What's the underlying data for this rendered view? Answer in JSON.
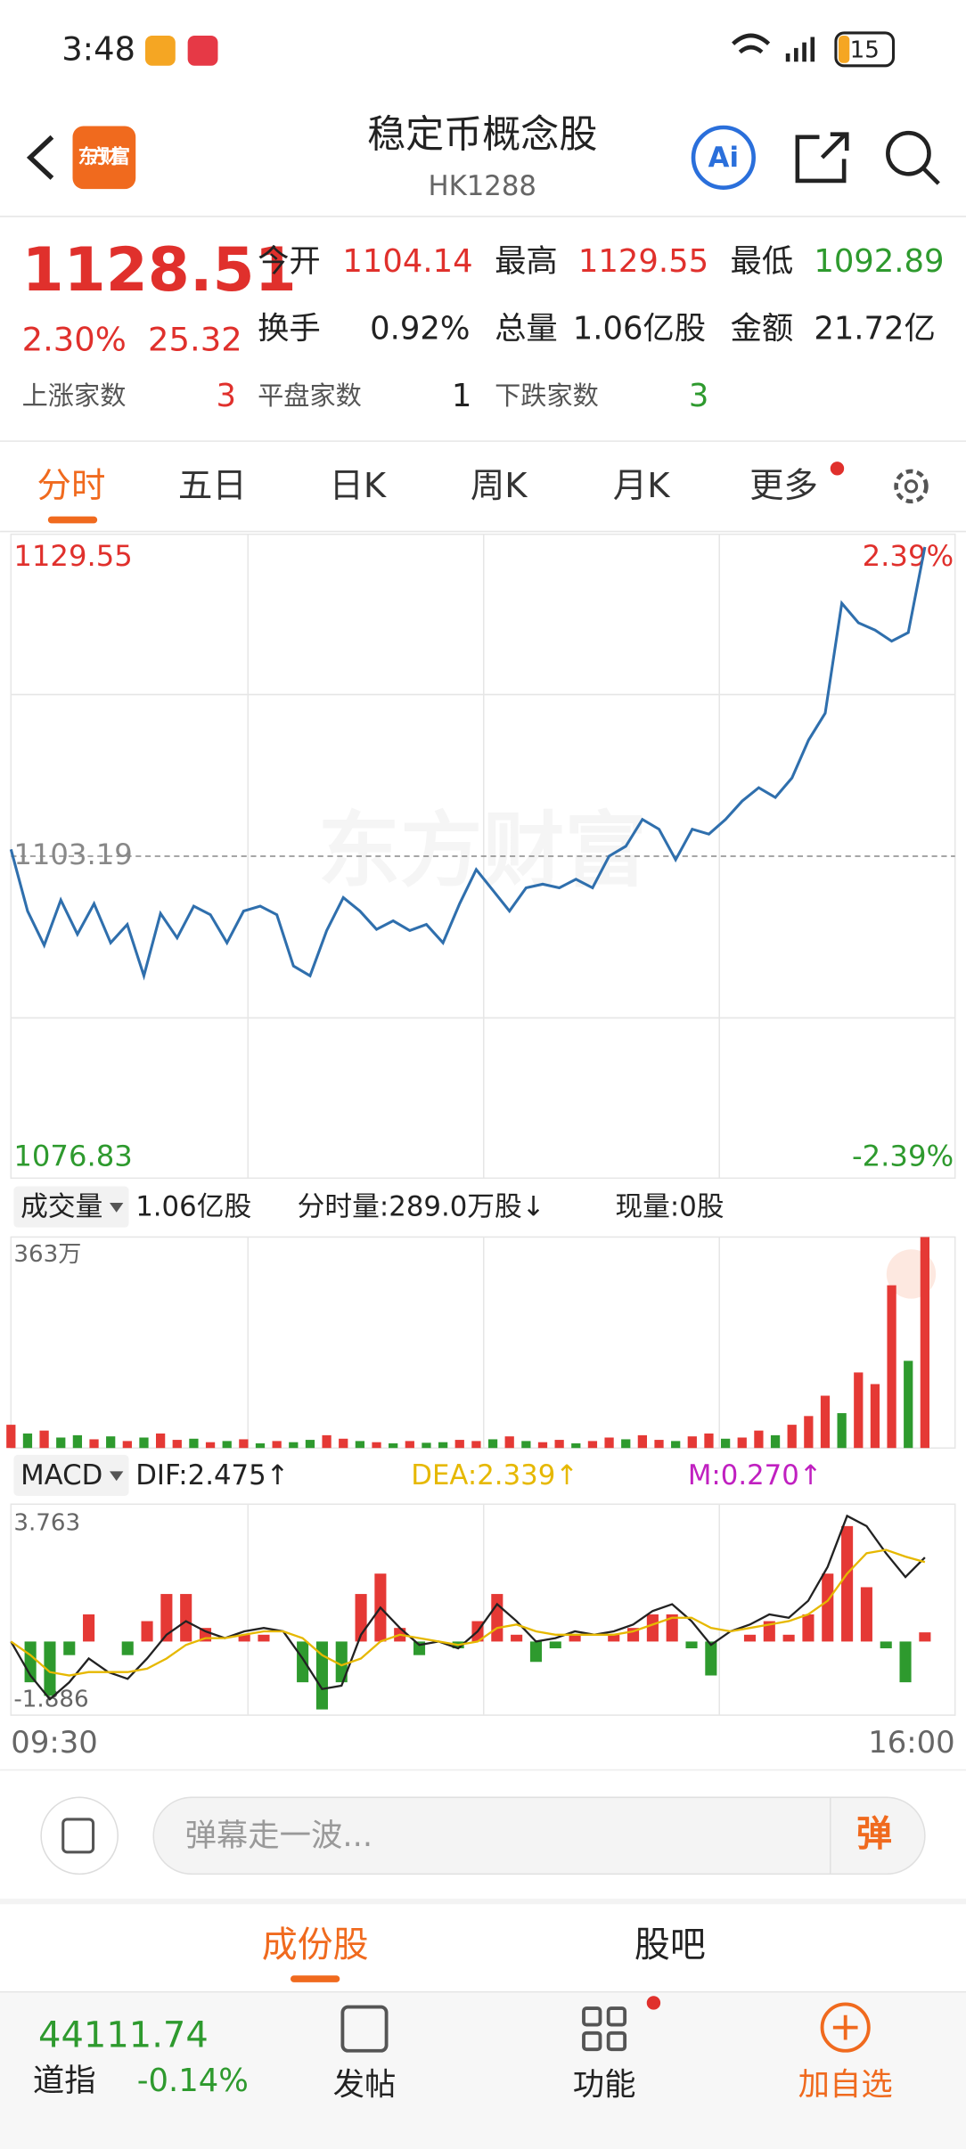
{
  "status_bar": {
    "time": "3:48",
    "battery": "15"
  },
  "header": {
    "logo": "东方财富",
    "title": "稳定币概念股",
    "code": "HK1288",
    "ai": "Ai"
  },
  "quote": {
    "price": "1128.51",
    "change_pct": "2.30%",
    "change": "25.32",
    "stats": [
      {
        "label": "今开",
        "value": "1104.14"
      },
      {
        "label": "最高",
        "value": "1129.55"
      },
      {
        "label": "最低",
        "value": "1092.89"
      },
      {
        "label": "换手",
        "value": "0.92%"
      },
      {
        "label": "总量",
        "value": "1.06亿股"
      },
      {
        "label": "金额",
        "value": "21.72亿"
      }
    ],
    "breadth": [
      {
        "label": "上涨家数",
        "value": "3"
      },
      {
        "label": "平盘家数",
        "value": "1"
      },
      {
        "label": "下跌家数",
        "value": "3"
      }
    ]
  },
  "tabs": [
    "分时",
    "五日",
    "日K",
    "周K",
    "月K",
    "更多"
  ],
  "watermark": "东方财富",
  "volume_header": {
    "selector": "成交量",
    "total": "1.06亿股",
    "minute": "分时量:289.0万股↓",
    "current": "现量:0股"
  },
  "macd_header": "MACD",
  "time_axis": [
    "09:30",
    "16:00"
  ],
  "chart_data": [
    {
      "type": "line",
      "color": "#2f6fad",
      "values": [
        1103.75,
        1098.7,
        1095.9,
        1099.6,
        1096.8,
        1099.3,
        1096.1,
        1097.6,
        1093.4,
        1098.5,
        1096.5,
        1099.1,
        1098.4,
        1096.1,
        1098.7,
        1099.1,
        1098.4,
        1094.2,
        1093.4,
        1097.1,
        1099.8,
        1098.7,
        1097.2,
        1097.9,
        1097.1,
        1097.6,
        1096.1,
        1099.3,
        1102.1,
        1100.4,
        1098.7,
        1100.6,
        1100.9,
        1100.6,
        1101.3,
        1100.6,
        1103.2,
        1104.0,
        1106.2,
        1105.4,
        1102.9,
        1105.4,
        1105.0,
        1106.2,
        1107.7,
        1108.8,
        1108.0,
        1109.6,
        1112.7,
        1114.9,
        1123.9,
        1122.3,
        1121.7,
        1120.8,
        1121.5,
        1128.51
      ],
      "ylim": [
        1076.83,
        1129.55
      ],
      "yticks": [
        1129.55,
        1103.19,
        1076.83
      ],
      "y2lim": [
        -2.39,
        2.39
      ],
      "y2ticks": [
        {
          "value": 2.39,
          "label": "2.39%"
        },
        {
          "value": -2.39,
          "label": "-2.39%"
        }
      ]
    },
    {
      "type": "bar",
      "values": [
        40,
        25,
        30,
        18,
        22,
        15,
        20,
        12,
        18,
        25,
        14,
        16,
        10,
        12,
        15,
        8,
        12,
        10,
        14,
        22,
        16,
        12,
        10,
        8,
        12,
        9,
        10,
        14,
        12,
        15,
        20,
        12,
        10,
        14,
        8,
        12,
        18,
        15,
        22,
        14,
        12,
        20,
        25,
        16,
        18,
        30,
        22,
        40,
        55,
        90,
        60,
        130,
        110,
        280,
        150,
        363
      ],
      "bar_colors": [
        "#e53935",
        "#2e9a2e",
        "#e53935",
        "#2e9a2e",
        "#2e9a2e",
        "#e53935",
        "#2e9a2e",
        "#e53935",
        "#2e9a2e",
        "#e53935",
        "#e53935",
        "#2e9a2e",
        "#e53935",
        "#2e9a2e",
        "#e53935",
        "#2e9a2e",
        "#e53935",
        "#2e9a2e",
        "#2e9a2e",
        "#e53935",
        "#e53935",
        "#2e9a2e",
        "#e53935",
        "#2e9a2e",
        "#e53935",
        "#2e9a2e",
        "#2e9a2e",
        "#e53935",
        "#e53935",
        "#2e9a2e",
        "#e53935",
        "#2e9a2e",
        "#e53935",
        "#e53935",
        "#2e9a2e",
        "#e53935",
        "#e53935",
        "#2e9a2e",
        "#e53935",
        "#e53935",
        "#2e9a2e",
        "#e53935",
        "#e53935",
        "#2e9a2e",
        "#e53935",
        "#e53935",
        "#2e9a2e",
        "#e53935",
        "#e53935",
        "#e53935",
        "#2e9a2e",
        "#e53935",
        "#e53935",
        "#e53935",
        "#2e9a2e",
        "#e53935"
      ],
      "ylim": [
        0,
        363
      ],
      "yticks": [
        {
          "value": 363,
          "label": "363万"
        }
      ]
    },
    {
      "type": "macd",
      "ylim": [
        -1.886,
        3.763
      ],
      "yticks": [
        3.763,
        -1.886
      ],
      "series": [
        {
          "label": "DIF:2.475↑",
          "color": "#222222",
          "values": [
            0.0,
            -1.0,
            -1.7,
            -1.2,
            -0.5,
            -0.9,
            -1.1,
            -0.5,
            0.2,
            0.6,
            0.3,
            0.1,
            0.3,
            0.4,
            0.3,
            -0.5,
            -1.4,
            -1.3,
            0.2,
            1.0,
            0.4,
            -0.1,
            0.0,
            -0.2,
            0.3,
            1.1,
            0.6,
            0.0,
            0.1,
            0.3,
            0.2,
            0.3,
            0.5,
            0.9,
            1.1,
            0.6,
            -0.1,
            0.3,
            0.5,
            0.8,
            0.7,
            1.2,
            2.2,
            3.7,
            3.4,
            2.6,
            1.9,
            2.475
          ]
        },
        {
          "label": "DEA:2.339↑",
          "color": "#e6b800",
          "values": [
            0.0,
            -0.4,
            -0.9,
            -1.0,
            -0.9,
            -0.9,
            -0.9,
            -0.8,
            -0.5,
            -0.1,
            0.1,
            0.1,
            0.2,
            0.3,
            0.3,
            0.1,
            -0.4,
            -0.7,
            -0.5,
            0.0,
            0.2,
            0.1,
            0.0,
            -0.1,
            0.0,
            0.4,
            0.5,
            0.3,
            0.2,
            0.2,
            0.2,
            0.2,
            0.3,
            0.5,
            0.7,
            0.7,
            0.4,
            0.3,
            0.4,
            0.5,
            0.6,
            0.8,
            1.2,
            2.0,
            2.6,
            2.7,
            2.5,
            2.339
          ]
        },
        {
          "label": "M:0.270↑",
          "color": "#c020c0",
          "up_color": "#e53935",
          "down_color": "#2e9a2e",
          "values": [
            0.0,
            -1.2,
            -1.6,
            -0.4,
            0.8,
            0.0,
            -0.4,
            0.6,
            1.4,
            1.4,
            0.4,
            0.0,
            0.2,
            0.2,
            0.0,
            -1.2,
            -2.0,
            -1.2,
            1.4,
            2.0,
            0.4,
            -0.4,
            0.0,
            -0.2,
            0.6,
            1.4,
            0.2,
            -0.6,
            -0.2,
            0.2,
            0.0,
            0.2,
            0.4,
            0.8,
            0.8,
            -0.2,
            -1.0,
            0.0,
            0.2,
            0.6,
            0.2,
            0.8,
            2.0,
            3.4,
            1.6,
            -0.2,
            -1.2,
            0.27
          ]
        }
      ]
    }
  ],
  "comment": {
    "placeholder": "弹幕走一波...",
    "button": "弹"
  },
  "sub_tabs": [
    "成份股",
    "股吧"
  ],
  "bottom": {
    "index_value": "44111.74",
    "index_name": "道指",
    "index_change": "-0.14%",
    "nav": [
      "发帖",
      "功能",
      "加自选"
    ]
  }
}
